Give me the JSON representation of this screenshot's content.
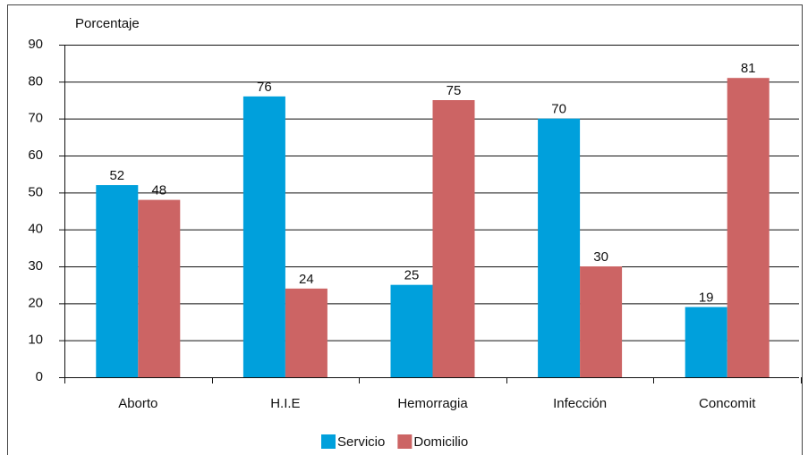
{
  "chart_data": {
    "type": "bar",
    "y_label": "Porcentaje",
    "categories": [
      "Aborto",
      "H.I.E",
      "Hemorragia",
      "Infección",
      "Concomit"
    ],
    "series": [
      {
        "name": "Servicio",
        "color": "#00a0dc",
        "values": [
          52,
          76,
          25,
          70,
          19
        ]
      },
      {
        "name": "Domicilio",
        "color": "#cc6464",
        "values": [
          48,
          24,
          75,
          30,
          81
        ]
      }
    ],
    "ylim": [
      0,
      90
    ],
    "yticks": [
      0,
      10,
      20,
      30,
      40,
      50,
      60,
      70,
      80,
      90
    ],
    "grid": true,
    "legend": "bottom"
  }
}
